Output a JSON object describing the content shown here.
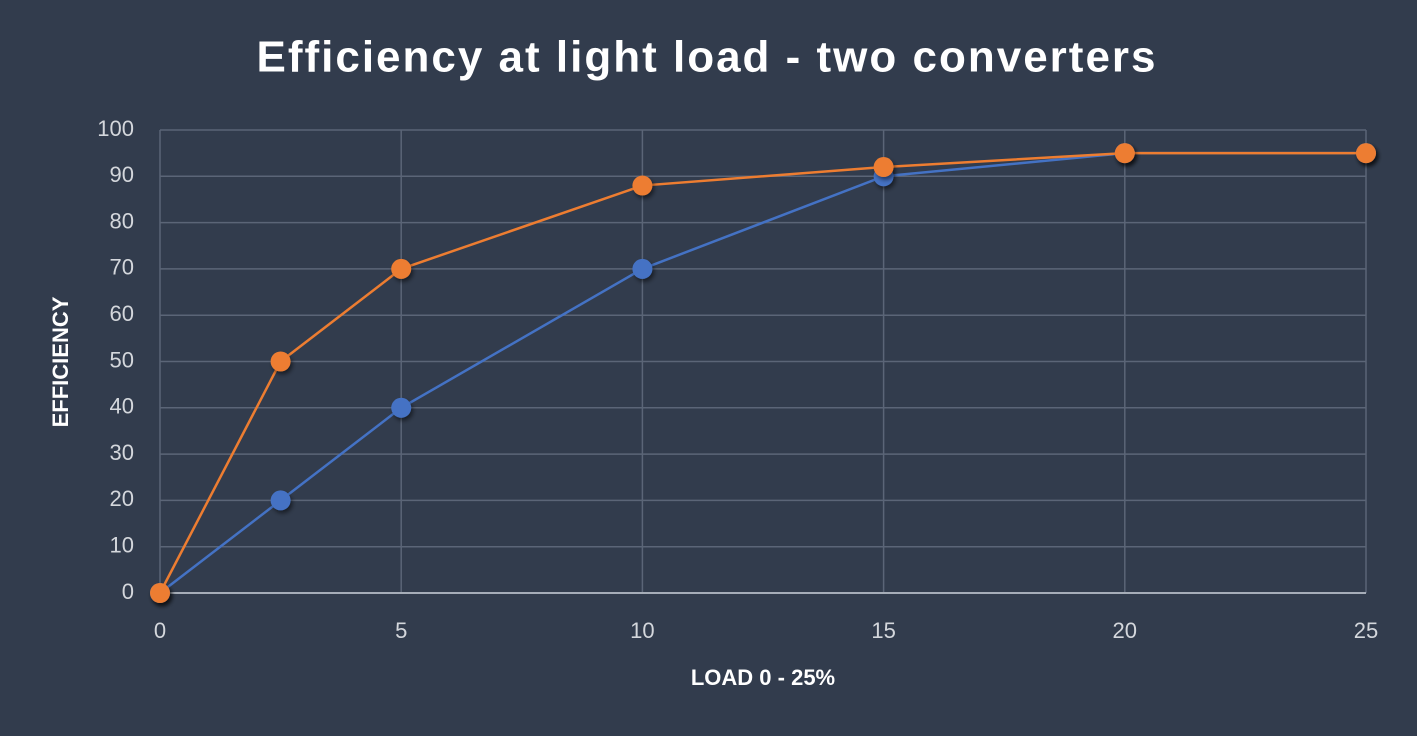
{
  "chart_data": {
    "type": "line",
    "title": "Efficiency at light load - two converters",
    "x_label": "LOAD 0 - 25%",
    "y_label": "EFFICIENCY",
    "x": [
      0,
      2.5,
      5,
      10,
      15,
      20,
      25
    ],
    "series": [
      {
        "color": "#4472c4",
        "values": [
          0,
          20,
          40,
          70,
          90,
          95,
          95
        ]
      },
      {
        "color": "#ed7d31",
        "values": [
          0,
          50,
          70,
          88,
          92,
          95,
          95
        ]
      }
    ],
    "xlim": [
      0,
      25
    ],
    "xticks": [
      0,
      5,
      10,
      15,
      20,
      25
    ],
    "ylim": [
      0,
      100
    ],
    "yticks": [
      0,
      10,
      20,
      30,
      40,
      50,
      60,
      70,
      80,
      90,
      100
    ],
    "grid": true
  }
}
